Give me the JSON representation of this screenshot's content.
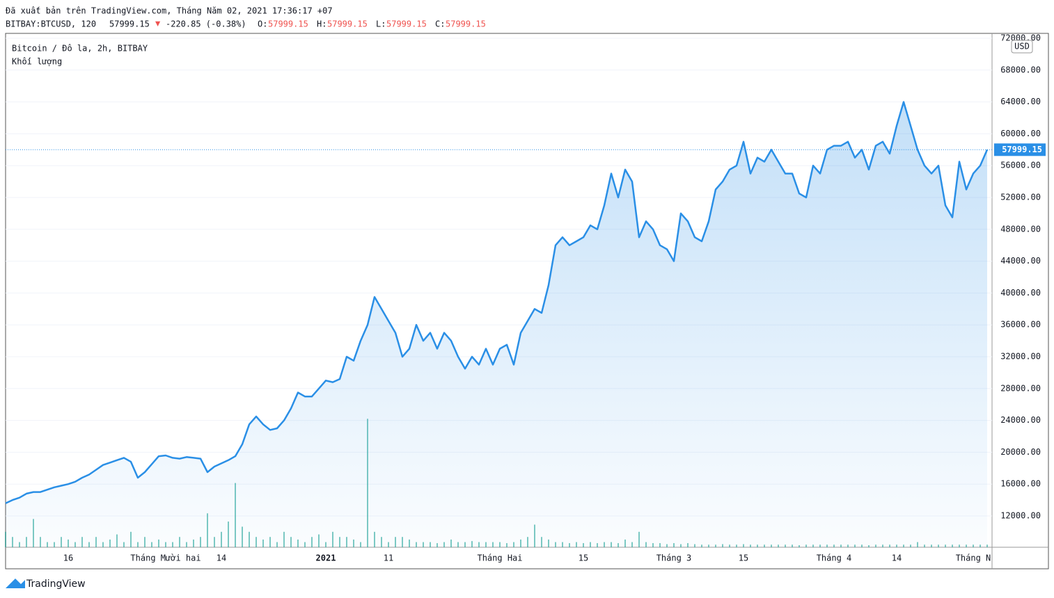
{
  "header": {
    "published": "Đã xuất bản trên TradingView.com, Tháng Năm 02, 2021 17:36:17 +07",
    "symbol": "BITBAY:BTCUSD, 120",
    "last": "57999.15",
    "arrow": "▼",
    "change": "-220.85 (-0.38%)",
    "ohlc": [
      {
        "label": "O:",
        "value": "57999.15"
      },
      {
        "label": "H:",
        "value": "57999.15"
      },
      {
        "label": "L:",
        "value": "57999.15"
      },
      {
        "label": "C:",
        "value": "57999.15"
      }
    ]
  },
  "chart_data": {
    "type": "line",
    "categories": [
      null,
      null,
      null,
      null,
      null,
      null,
      null,
      null,
      null,
      "16",
      null,
      null,
      null,
      null,
      null,
      null,
      null,
      null,
      null,
      null,
      null,
      null,
      null,
      "Tháng Mười hai",
      null,
      null,
      null,
      null,
      null,
      null,
      null,
      "14",
      null,
      null,
      null,
      null,
      null,
      null,
      null,
      null,
      null,
      null,
      null,
      null,
      null,
      null,
      "2021",
      null,
      null,
      null,
      null,
      null,
      null,
      null,
      null,
      "11",
      null,
      null,
      null,
      null,
      null,
      null,
      null,
      null,
      null,
      null,
      null,
      null,
      null,
      null,
      null,
      "Tháng Hai",
      null,
      null,
      null,
      null,
      null,
      null,
      null,
      null,
      null,
      null,
      null,
      "15",
      null,
      null,
      null,
      null,
      null,
      null,
      null,
      null,
      null,
      null,
      null,
      null,
      "Tháng 3",
      null,
      null,
      null,
      null,
      null,
      null,
      null,
      null,
      null,
      "15",
      null,
      null,
      null,
      null,
      null,
      null,
      null,
      null,
      null,
      null,
      null,
      null,
      "Tháng 4",
      null,
      null,
      null,
      null,
      null,
      null,
      null,
      null,
      "14",
      null,
      null,
      null,
      null,
      null,
      null,
      null,
      null,
      null,
      null,
      "Tháng N",
      null,
      null
    ],
    "series": [
      {
        "name": "Bitcoin / Đô la, 2h, BITBAY",
        "color": "#2a8fe6",
        "values": [
          13600,
          14000,
          14300,
          14800,
          15000,
          15000,
          15300,
          15600,
          15800,
          16000,
          16300,
          16800,
          17200,
          17800,
          18400,
          18700,
          19000,
          19300,
          18800,
          16800,
          17500,
          18500,
          19500,
          19600,
          19300,
          19200,
          19400,
          19300,
          19200,
          17500,
          18200,
          18600,
          19000,
          19500,
          21000,
          23500,
          24500,
          23500,
          22800,
          23000,
          24000,
          25500,
          27500,
          27000,
          27000,
          28000,
          29000,
          28800,
          29200,
          32000,
          31500,
          34000,
          36000,
          39500,
          38000,
          36500,
          35000,
          32000,
          33000,
          36000,
          34000,
          35000,
          33000,
          35000,
          34000,
          32000,
          30500,
          32000,
          31000,
          33000,
          31000,
          33000,
          33500,
          31000,
          35000,
          36500,
          38000,
          37500,
          41000,
          46000,
          47000,
          46000,
          46500,
          47000,
          48500,
          48000,
          51000,
          55000,
          52000,
          55500,
          54000,
          47000,
          49000,
          48000,
          46000,
          45500,
          44000,
          50000,
          49000,
          47000,
          46500,
          49000,
          53000,
          54000,
          55500,
          56000,
          59000,
          55000,
          57000,
          56500,
          58000,
          56500,
          55000,
          55000,
          52500,
          52000,
          56000,
          55000,
          58000,
          58500,
          58500,
          59000,
          57000,
          58000,
          55500,
          58500,
          59000,
          57500,
          61000,
          64000,
          61000,
          58000,
          56000,
          55000,
          56000,
          51000,
          49500,
          56500,
          53000,
          55000,
          56000,
          57999.15
        ]
      },
      {
        "name": "Khối lượng",
        "color": "#26a69a",
        "axis": "y2",
        "values": [
          3,
          2,
          1,
          2,
          5.5,
          2,
          1,
          1,
          2,
          1.5,
          1,
          2,
          1,
          2,
          1,
          1.5,
          2.5,
          1,
          3,
          1,
          2,
          1,
          1.5,
          1,
          1,
          2,
          1,
          1.5,
          2,
          6.6,
          2,
          3,
          5,
          12.5,
          4,
          3,
          2,
          1.5,
          2,
          1,
          3,
          2,
          1.5,
          1,
          2,
          2.5,
          1,
          3,
          2,
          2,
          1.5,
          1,
          25,
          3,
          2,
          1,
          2,
          2,
          1.5,
          1,
          1,
          1,
          0.8,
          1,
          1.5,
          1,
          1,
          1.2,
          1,
          1,
          1,
          1,
          0.8,
          1,
          1.5,
          2,
          4.4,
          2,
          1.5,
          1,
          1,
          0.8,
          1,
          0.8,
          1,
          0.8,
          1,
          1,
          0.8,
          1.5,
          1,
          3,
          1,
          0.8,
          0.8,
          0.6,
          0.8,
          0.6,
          0.8,
          0.6,
          0.5,
          0.5,
          0.5,
          0.6,
          0.5,
          0.5,
          0.6,
          0.5,
          0.5,
          0.5,
          0.5,
          0.5,
          0.5,
          0.5,
          0.4,
          0.5,
          0.5,
          0.5,
          0.5,
          0.5,
          0.5,
          0.5,
          0.5,
          0.5,
          0.4,
          0.5,
          0.5,
          0.5,
          0.5,
          0.5,
          0.5,
          1,
          0.5,
          0.5,
          0.5,
          0.5,
          0.5,
          0.5,
          0.5,
          0.5,
          0.5,
          0.5
        ]
      }
    ],
    "ylim": [
      8070,
      72610
    ],
    "yticks": [
      {
        "value": 12000,
        "label": "12000.00"
      },
      {
        "value": 16000,
        "label": "16000.00"
      },
      {
        "value": 20000,
        "label": "20000.00"
      },
      {
        "value": 24000,
        "label": "24000.00"
      },
      {
        "value": 28000,
        "label": "28000.00"
      },
      {
        "value": 32000,
        "label": "32000.00"
      },
      {
        "value": 36000,
        "label": "36000.00"
      },
      {
        "value": 40000,
        "label": "40000.00"
      },
      {
        "value": 44000,
        "label": "44000.00"
      },
      {
        "value": 48000,
        "label": "48000.00"
      },
      {
        "value": 52000,
        "label": "52000.00"
      },
      {
        "value": 56000,
        "label": "56000.00"
      },
      {
        "value": 60000,
        "label": "60000.00"
      },
      {
        "value": 64000,
        "label": "64000.00"
      },
      {
        "value": 68000,
        "label": "68000.00"
      },
      {
        "value": 72000,
        "label": "72000.00"
      }
    ],
    "y2lim": [
      0,
      100
    ],
    "last_price": {
      "value": 57999.15,
      "label": "57999.15"
    },
    "currency": "USD",
    "grid": true
  },
  "footer": {
    "brand": "TradingView"
  }
}
